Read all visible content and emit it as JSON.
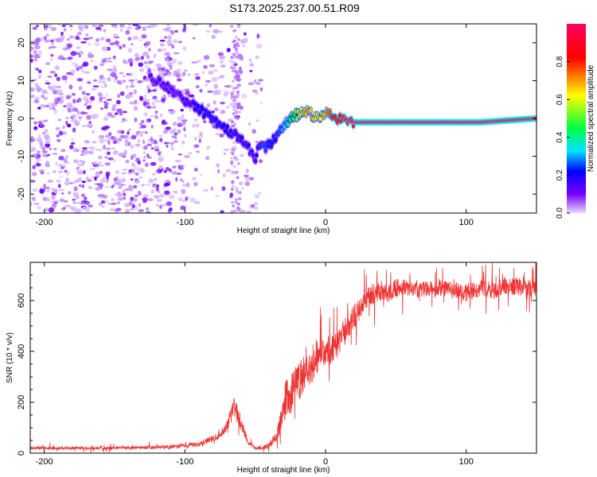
{
  "title": "S173.2025.237.00.51.R09",
  "chart_data": [
    {
      "type": "heatmap",
      "title": "S173.2025.237.00.51.R09",
      "xlabel": "Height of straight line (km)",
      "ylabel": "Frequency (Hz)",
      "xlim": [
        -210,
        150
      ],
      "ylim": [
        -25,
        25
      ],
      "xticks": [
        -200,
        -100,
        0,
        100
      ],
      "yticks": [
        -20,
        -10,
        0,
        10,
        20
      ],
      "colorbar": {
        "label": "Normalized spectral amplitude",
        "range": [
          0,
          1
        ],
        "ticks": [
          0.0,
          0.2,
          0.4,
          0.6,
          0.8
        ],
        "tick_labels": [
          "0.0",
          "0.2",
          "0.4",
          "0.6",
          "0.8"
        ],
        "colors": [
          "#e6d9ff",
          "#7a00ff",
          "#0000ff",
          "#00e5ff",
          "#00ff40",
          "#ffff00",
          "#ff0000",
          "#ff0060"
        ]
      },
      "signal_trace": {
        "x": [
          -125,
          -115,
          -105,
          -95,
          -85,
          -75,
          -65,
          -55,
          -50,
          -48,
          -44,
          -40,
          -35,
          -30,
          -25,
          -20,
          -15,
          -10,
          -5,
          0,
          5,
          10,
          15,
          20,
          50,
          80,
          110,
          150
        ],
        "y": [
          11,
          9,
          6,
          4,
          1,
          -2,
          -4,
          -7,
          -12,
          -7,
          -8,
          -7,
          -5,
          -2,
          0,
          1,
          2,
          1,
          0,
          2,
          0,
          0,
          -1,
          -1,
          -1,
          -1,
          -1,
          0
        ],
        "amplitude": [
          0.2,
          0.2,
          0.2,
          0.25,
          0.3,
          0.3,
          0.25,
          0.25,
          0.2,
          0.3,
          0.35,
          0.3,
          0.3,
          0.4,
          0.55,
          0.65,
          0.75,
          0.75,
          0.7,
          0.75,
          0.85,
          0.9,
          0.95,
          0.98,
          0.98,
          0.95,
          0.98,
          0.98
        ]
      },
      "noise_region_x": [
        -210,
        -45
      ]
    },
    {
      "type": "line",
      "xlabel": "Height of straight line (km)",
      "ylabel": "SNR (10 * v/v)",
      "xlim": [
        -210,
        150
      ],
      "ylim": [
        0,
        750
      ],
      "xticks": [
        -200,
        -100,
        0,
        100
      ],
      "yticks": [
        0,
        200,
        400,
        600
      ],
      "color": "#ee3333",
      "series": [
        {
          "name": "SNR",
          "x": [
            -210,
            -150,
            -110,
            -90,
            -75,
            -70,
            -65,
            -60,
            -55,
            -50,
            -45,
            -40,
            -35,
            -30,
            -27,
            -25,
            -20,
            -15,
            -10,
            -5,
            0,
            5,
            10,
            15,
            20,
            25,
            30,
            35,
            40,
            45,
            50,
            60,
            70,
            80,
            90,
            100,
            110,
            120,
            130,
            140,
            150
          ],
          "y": [
            20,
            20,
            25,
            35,
            70,
            110,
            180,
            120,
            40,
            20,
            20,
            30,
            60,
            160,
            250,
            220,
            280,
            310,
            340,
            380,
            410,
            400,
            440,
            490,
            530,
            580,
            610,
            630,
            640,
            630,
            650,
            650,
            645,
            650,
            640,
            630,
            650,
            640,
            660,
            650,
            640
          ],
          "spread": [
            10,
            10,
            12,
            15,
            25,
            35,
            70,
            45,
            15,
            10,
            10,
            20,
            40,
            110,
            160,
            140,
            130,
            130,
            110,
            110,
            100,
            100,
            90,
            90,
            80,
            80,
            70,
            70,
            65,
            65,
            60,
            55,
            55,
            55,
            55,
            60,
            55,
            60,
            60,
            60,
            60
          ]
        }
      ]
    }
  ]
}
